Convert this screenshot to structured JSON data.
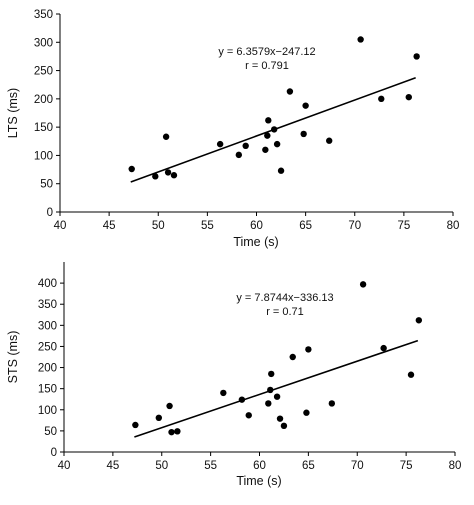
{
  "chart_data": [
    {
      "type": "scatter",
      "title": "",
      "xlabel": "Time (s)",
      "ylabel": "LTS (ms)",
      "xlim": [
        40,
        80
      ],
      "ylim": [
        0,
        350
      ],
      "xticks": [
        40,
        45,
        50,
        55,
        60,
        65,
        70,
        75,
        80
      ],
      "yticks": [
        0,
        50,
        100,
        150,
        200,
        250,
        300,
        350
      ],
      "grid": false,
      "legend": "none",
      "point_color": "#000000",
      "line_color": "#000000",
      "trendline": {
        "slope": 6.3579,
        "intercept": -247.12,
        "x_range": [
          47.2,
          76.2
        ]
      },
      "annotations": [
        "y = 6.3579x−247.12",
        "r = 0.791"
      ],
      "points": [
        {
          "x": 47.3,
          "y": 76
        },
        {
          "x": 49.7,
          "y": 63
        },
        {
          "x": 50.8,
          "y": 133
        },
        {
          "x": 51.0,
          "y": 70
        },
        {
          "x": 51.6,
          "y": 65
        },
        {
          "x": 56.3,
          "y": 120
        },
        {
          "x": 58.2,
          "y": 101
        },
        {
          "x": 58.9,
          "y": 117
        },
        {
          "x": 60.9,
          "y": 110
        },
        {
          "x": 61.1,
          "y": 135
        },
        {
          "x": 61.2,
          "y": 162
        },
        {
          "x": 61.8,
          "y": 146
        },
        {
          "x": 62.1,
          "y": 120
        },
        {
          "x": 62.5,
          "y": 73
        },
        {
          "x": 63.4,
          "y": 213
        },
        {
          "x": 64.8,
          "y": 138
        },
        {
          "x": 65.0,
          "y": 188
        },
        {
          "x": 67.4,
          "y": 126
        },
        {
          "x": 70.6,
          "y": 305
        },
        {
          "x": 72.7,
          "y": 200
        },
        {
          "x": 75.5,
          "y": 203
        },
        {
          "x": 76.3,
          "y": 275
        }
      ]
    },
    {
      "type": "scatter",
      "title": "",
      "xlabel": "Time (s)",
      "ylabel": "STS (ms)",
      "xlim": [
        40,
        80
      ],
      "ylim": [
        0,
        450
      ],
      "xticks": [
        40,
        45,
        50,
        55,
        60,
        65,
        70,
        75,
        80
      ],
      "yticks": [
        0,
        50,
        100,
        150,
        200,
        250,
        300,
        350,
        400
      ],
      "grid": false,
      "legend": "none",
      "point_color": "#000000",
      "line_color": "#000000",
      "trendline": {
        "slope": 7.8744,
        "intercept": -336.13,
        "x_range": [
          47.2,
          76.2
        ]
      },
      "annotations": [
        "y = 7.8744x−336.13",
        "r = 0.71"
      ],
      "points": [
        {
          "x": 47.3,
          "y": 64
        },
        {
          "x": 49.7,
          "y": 81
        },
        {
          "x": 50.8,
          "y": 109
        },
        {
          "x": 51.0,
          "y": 47
        },
        {
          "x": 51.6,
          "y": 49
        },
        {
          "x": 56.3,
          "y": 140
        },
        {
          "x": 58.2,
          "y": 124
        },
        {
          "x": 58.9,
          "y": 87
        },
        {
          "x": 60.9,
          "y": 115
        },
        {
          "x": 61.1,
          "y": 147
        },
        {
          "x": 61.2,
          "y": 185
        },
        {
          "x": 61.8,
          "y": 131
        },
        {
          "x": 62.1,
          "y": 79
        },
        {
          "x": 62.5,
          "y": 62
        },
        {
          "x": 63.4,
          "y": 225
        },
        {
          "x": 64.8,
          "y": 93
        },
        {
          "x": 65.0,
          "y": 243
        },
        {
          "x": 67.4,
          "y": 115
        },
        {
          "x": 70.6,
          "y": 397
        },
        {
          "x": 72.7,
          "y": 246
        },
        {
          "x": 75.5,
          "y": 183
        },
        {
          "x": 76.3,
          "y": 312
        }
      ]
    }
  ]
}
